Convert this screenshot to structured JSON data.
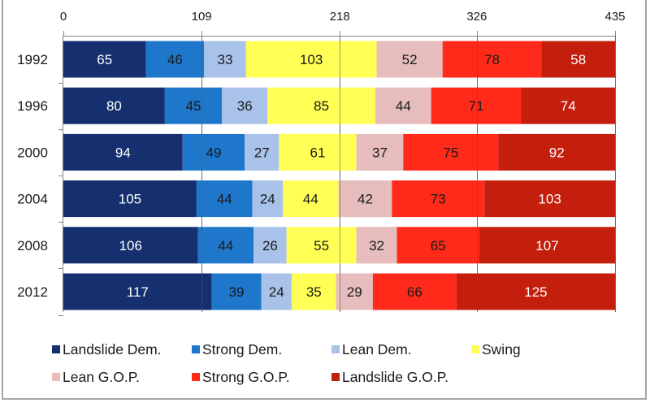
{
  "chart_data": {
    "type": "bar",
    "orientation": "horizontal",
    "stacked": true,
    "title": "",
    "xlabel": "",
    "ylabel": "",
    "xlim": [
      0,
      435
    ],
    "xticks": [
      0,
      109,
      218,
      326,
      435
    ],
    "xtick_labels": [
      "0",
      "109",
      "218",
      "326",
      "435"
    ],
    "xaxis_position": "top",
    "grid": true,
    "categories": [
      "1992",
      "1996",
      "2000",
      "2004",
      "2008",
      "2012"
    ],
    "series": [
      {
        "name": "Landslide Dem.",
        "color": "#16306f",
        "label_color": "#ffffff",
        "values": [
          65,
          80,
          94,
          105,
          106,
          117
        ]
      },
      {
        "name": "Strong Dem.",
        "color": "#1f77cc",
        "label_color": "#1a1a1a",
        "values": [
          46,
          45,
          49,
          44,
          44,
          39
        ]
      },
      {
        "name": "Lean Dem.",
        "color": "#a8c2ea",
        "label_color": "#1a1a1a",
        "values": [
          33,
          36,
          27,
          24,
          26,
          24
        ]
      },
      {
        "name": "Swing",
        "color": "#ffff55",
        "label_color": "#1a1a1a",
        "values": [
          103,
          85,
          61,
          44,
          55,
          35
        ]
      },
      {
        "name": "Lean G.O.P.",
        "color": "#e6bcbc",
        "label_color": "#1a1a1a",
        "values": [
          52,
          44,
          37,
          42,
          32,
          29
        ]
      },
      {
        "name": "Strong G.O.P.",
        "color": "#ff2a1a",
        "label_color": "#1a1a1a",
        "values": [
          78,
          71,
          75,
          73,
          65,
          66
        ]
      },
      {
        "name": "Landslide G.O.P.",
        "color": "#c41e0d",
        "label_color": "#ffffff",
        "values": [
          58,
          74,
          92,
          103,
          107,
          125
        ]
      }
    ],
    "legend": {
      "position": "bottom",
      "entries": [
        "Landslide Dem.",
        "Strong Dem.",
        "Lean Dem.",
        "Swing",
        "Lean G.O.P.",
        "Strong G.O.P.",
        "Landslide G.O.P."
      ]
    }
  }
}
